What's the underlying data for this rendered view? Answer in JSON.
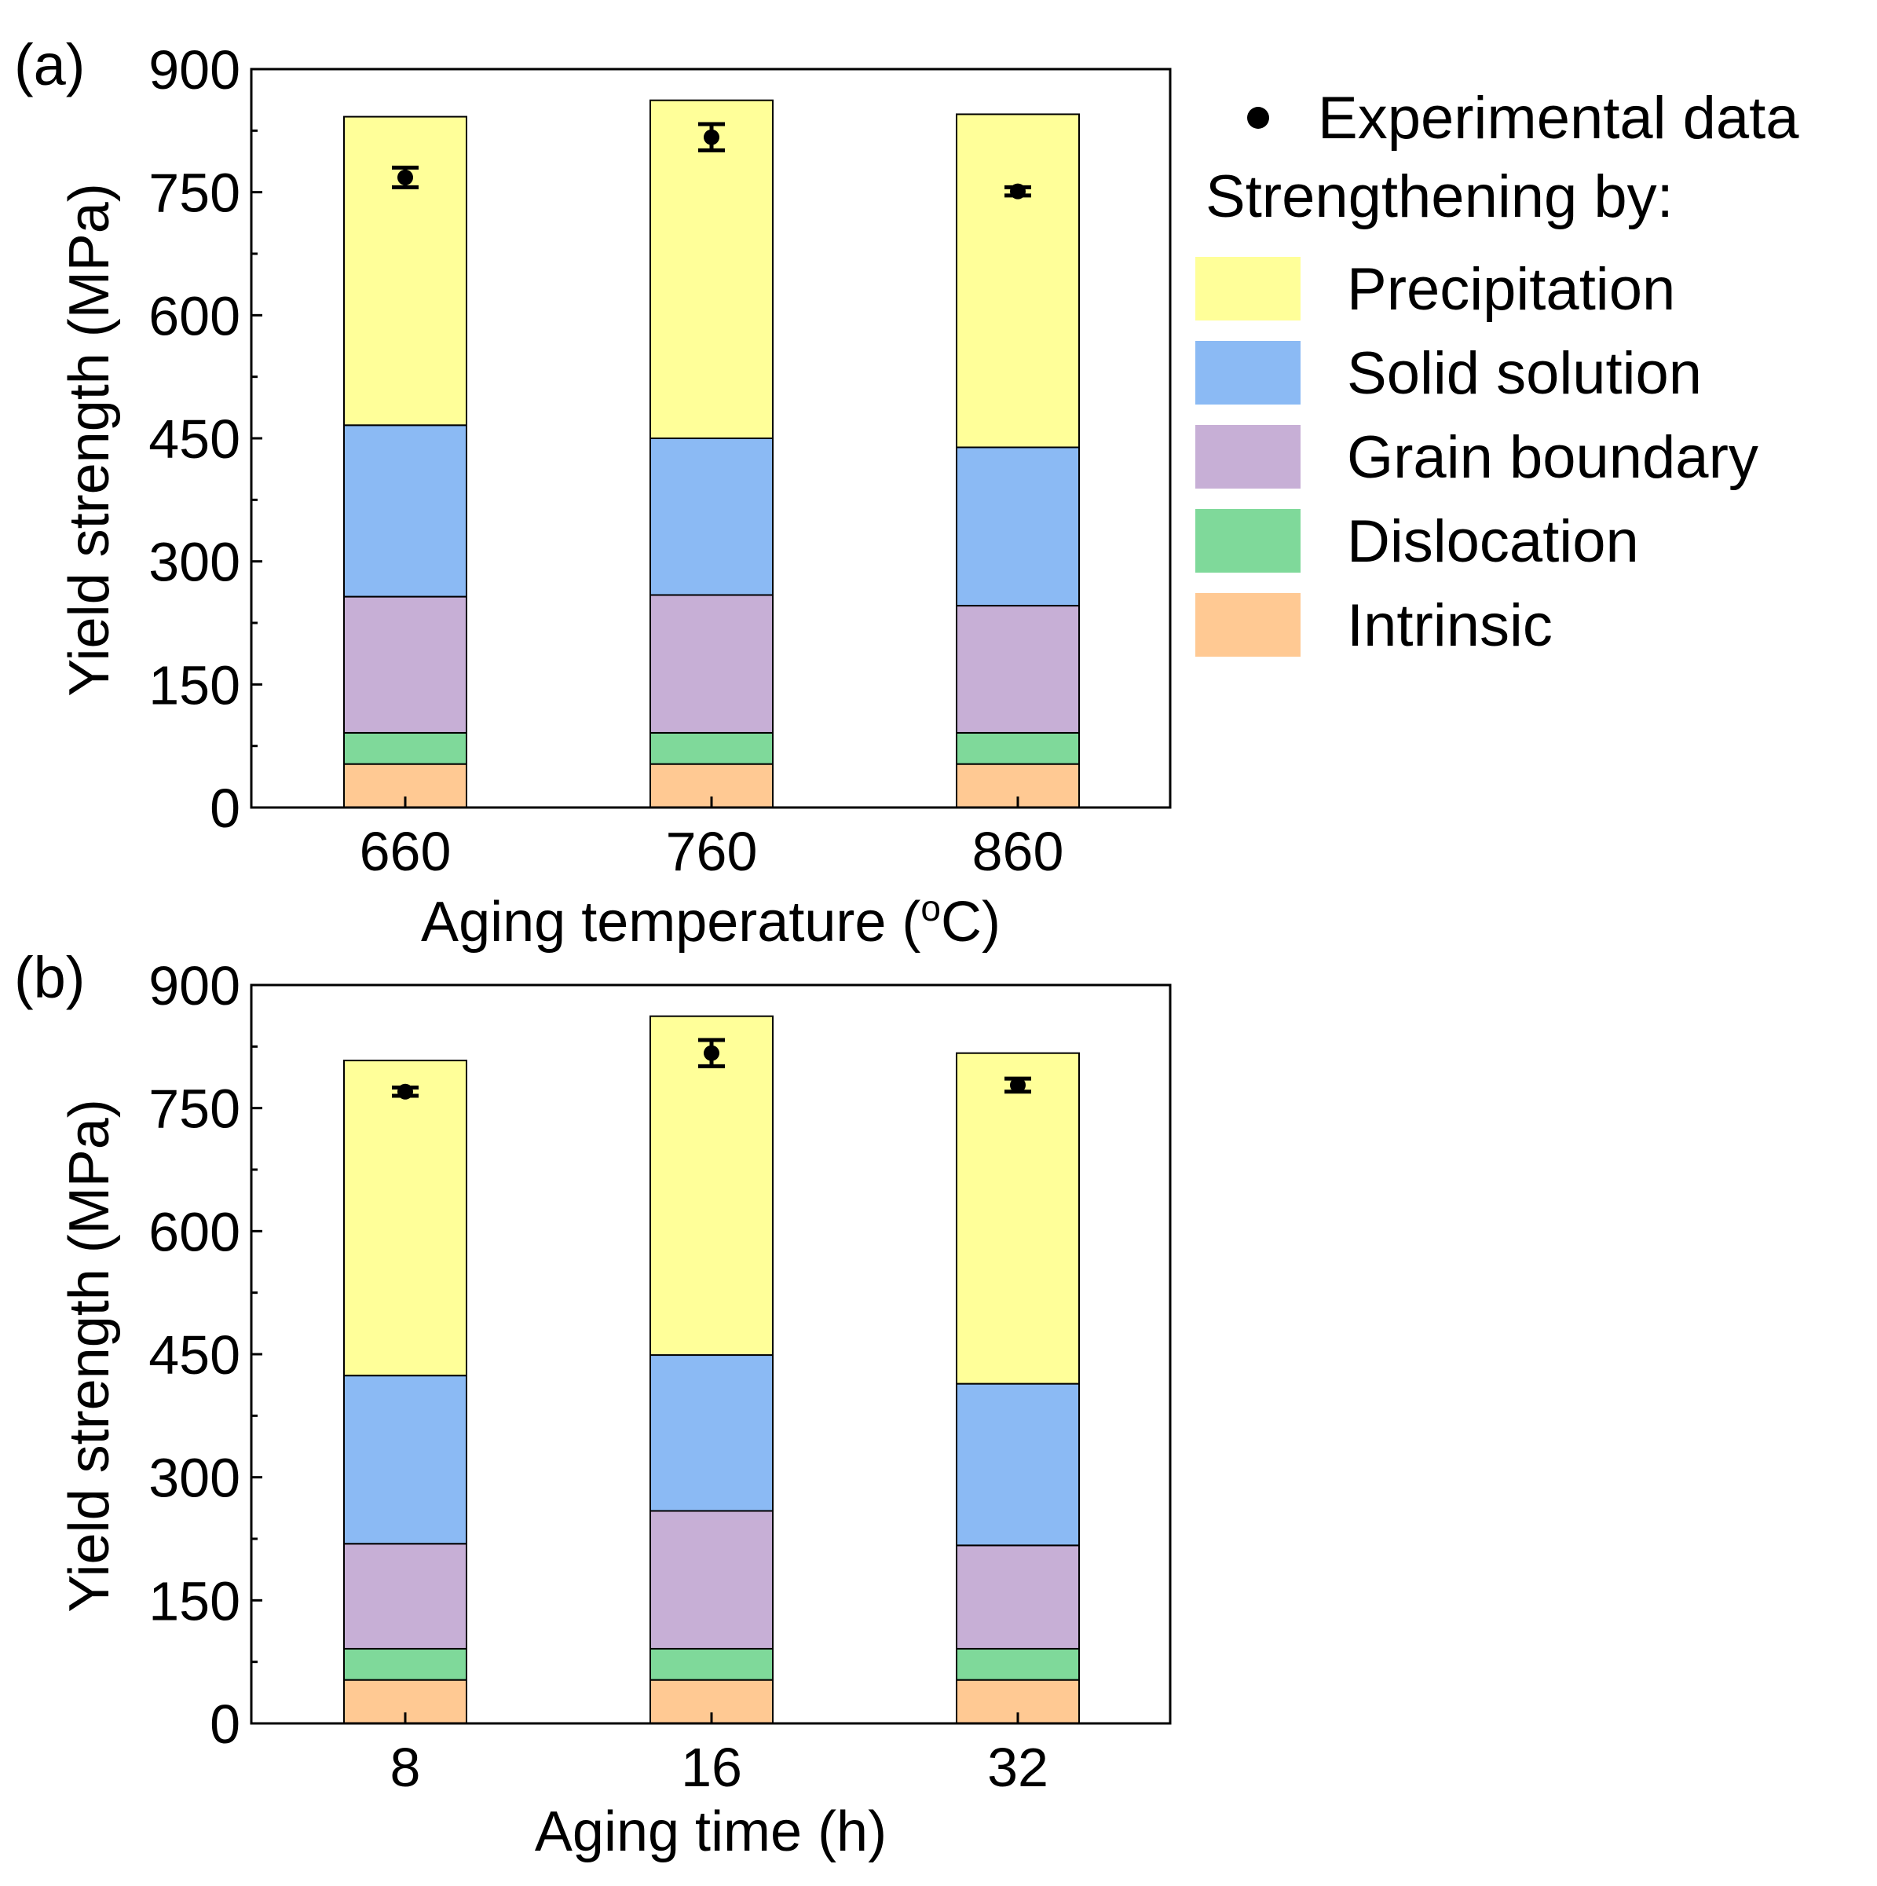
{
  "legend": {
    "experimental_label": "Experimental data",
    "group_title": "Strengthening by:"
  },
  "components": [
    {
      "key": "precipitation",
      "label": "Precipitation",
      "color": "#FFFF99"
    },
    {
      "key": "solid_solution",
      "label": "Solid solution",
      "color": "#8BBAF4"
    },
    {
      "key": "grain_boundary",
      "label": "Grain boundary",
      "color": "#C7AFD6"
    },
    {
      "key": "dislocation",
      "label": "Dislocation",
      "color": "#7FD99A"
    },
    {
      "key": "intrinsic",
      "label": "Intrinsic",
      "color": "#FFC993"
    }
  ],
  "chart_data": [
    {
      "type": "bar",
      "stacked": true,
      "panel_label": "(a)",
      "xlabel": "Aging temperature (oC)",
      "xlabel_main": "Aging temperature (",
      "xlabel_sup": "o",
      "xlabel_end": "C)",
      "ylabel": "Yield strength (MPa)",
      "ylim": [
        0,
        900
      ],
      "yticks": [
        0,
        150,
        300,
        450,
        600,
        750,
        900
      ],
      "categories": [
        "660",
        "760",
        "860"
      ],
      "series": [
        {
          "name": "Intrinsic",
          "values": [
            53,
            53,
            53
          ]
        },
        {
          "name": "Dislocation",
          "values": [
            38,
            38,
            38
          ]
        },
        {
          "name": "Grain boundary",
          "values": [
            166,
            168,
            155
          ]
        },
        {
          "name": "Solid solution",
          "values": [
            209,
            191,
            193
          ]
        },
        {
          "name": "Precipitation",
          "values": [
            376,
            412,
            406
          ]
        }
      ],
      "experimental": {
        "values": [
          768,
          817,
          751
        ],
        "errors": [
          12,
          16,
          5
        ]
      }
    },
    {
      "type": "bar",
      "stacked": true,
      "panel_label": "(b)",
      "xlabel": "Aging time (h)",
      "ylabel": "Yield strength (MPa)",
      "ylim": [
        0,
        900
      ],
      "yticks": [
        0,
        150,
        300,
        450,
        600,
        750,
        900
      ],
      "categories": [
        "8",
        "16",
        "32"
      ],
      "series": [
        {
          "name": "Intrinsic",
          "values": [
            53,
            53,
            53
          ]
        },
        {
          "name": "Dislocation",
          "values": [
            38,
            38,
            38
          ]
        },
        {
          "name": "Grain boundary",
          "values": [
            128,
            168,
            126
          ]
        },
        {
          "name": "Solid solution",
          "values": [
            205,
            190,
            197
          ]
        },
        {
          "name": "Precipitation",
          "values": [
            384,
            413,
            403
          ]
        }
      ],
      "experimental": {
        "values": [
          770,
          817,
          778
        ],
        "errors": [
          5,
          16,
          8
        ]
      }
    }
  ]
}
